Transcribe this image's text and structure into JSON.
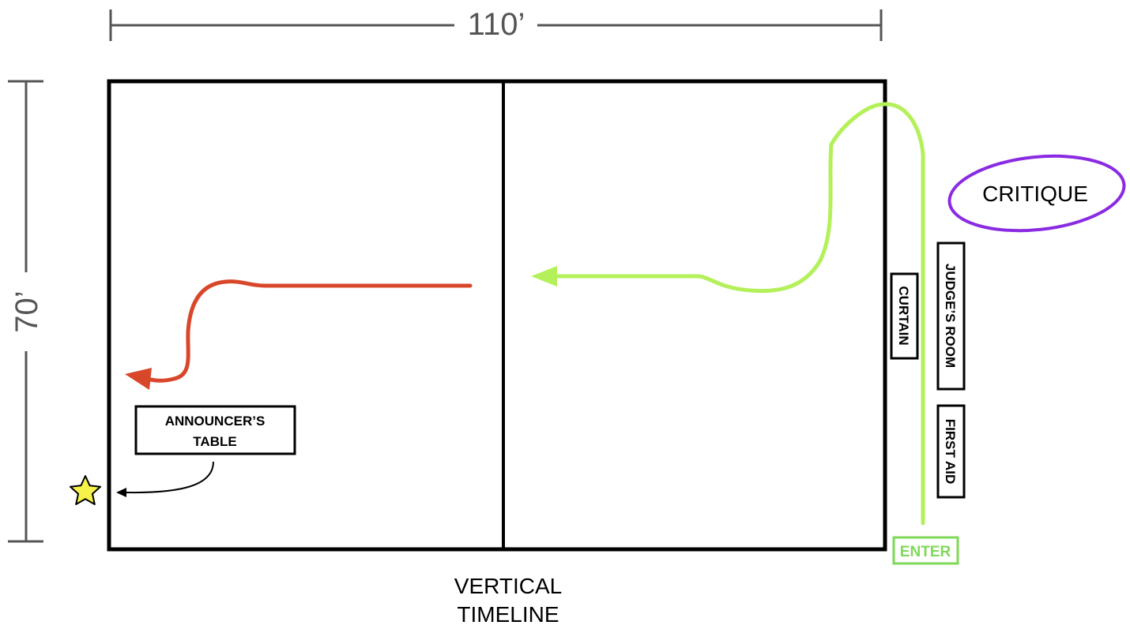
{
  "dimensions": {
    "width_label": "110’",
    "height_label": "70’"
  },
  "labels": {
    "curtain": "CURTAIN",
    "judges_room": "JUDGE’S ROOM",
    "first_aid": "FIRST AID",
    "critique": "CRITIQUE",
    "enter": "ENTER",
    "announcers_table_line1": "ANNOUNCER’S",
    "announcers_table_line2": "TABLE",
    "vertical_timeline_line1": "VERTICAL",
    "vertical_timeline_line2": "TIMELINE"
  },
  "colors": {
    "entry_path": "#b4f05a",
    "exit_path": "#d9472b",
    "critique_ring": "#8a2be2",
    "enter_box": "#7ed957",
    "star_fill": "#f7f24a",
    "dimension_lines": "#555555",
    "floor_lines": "#000000"
  }
}
